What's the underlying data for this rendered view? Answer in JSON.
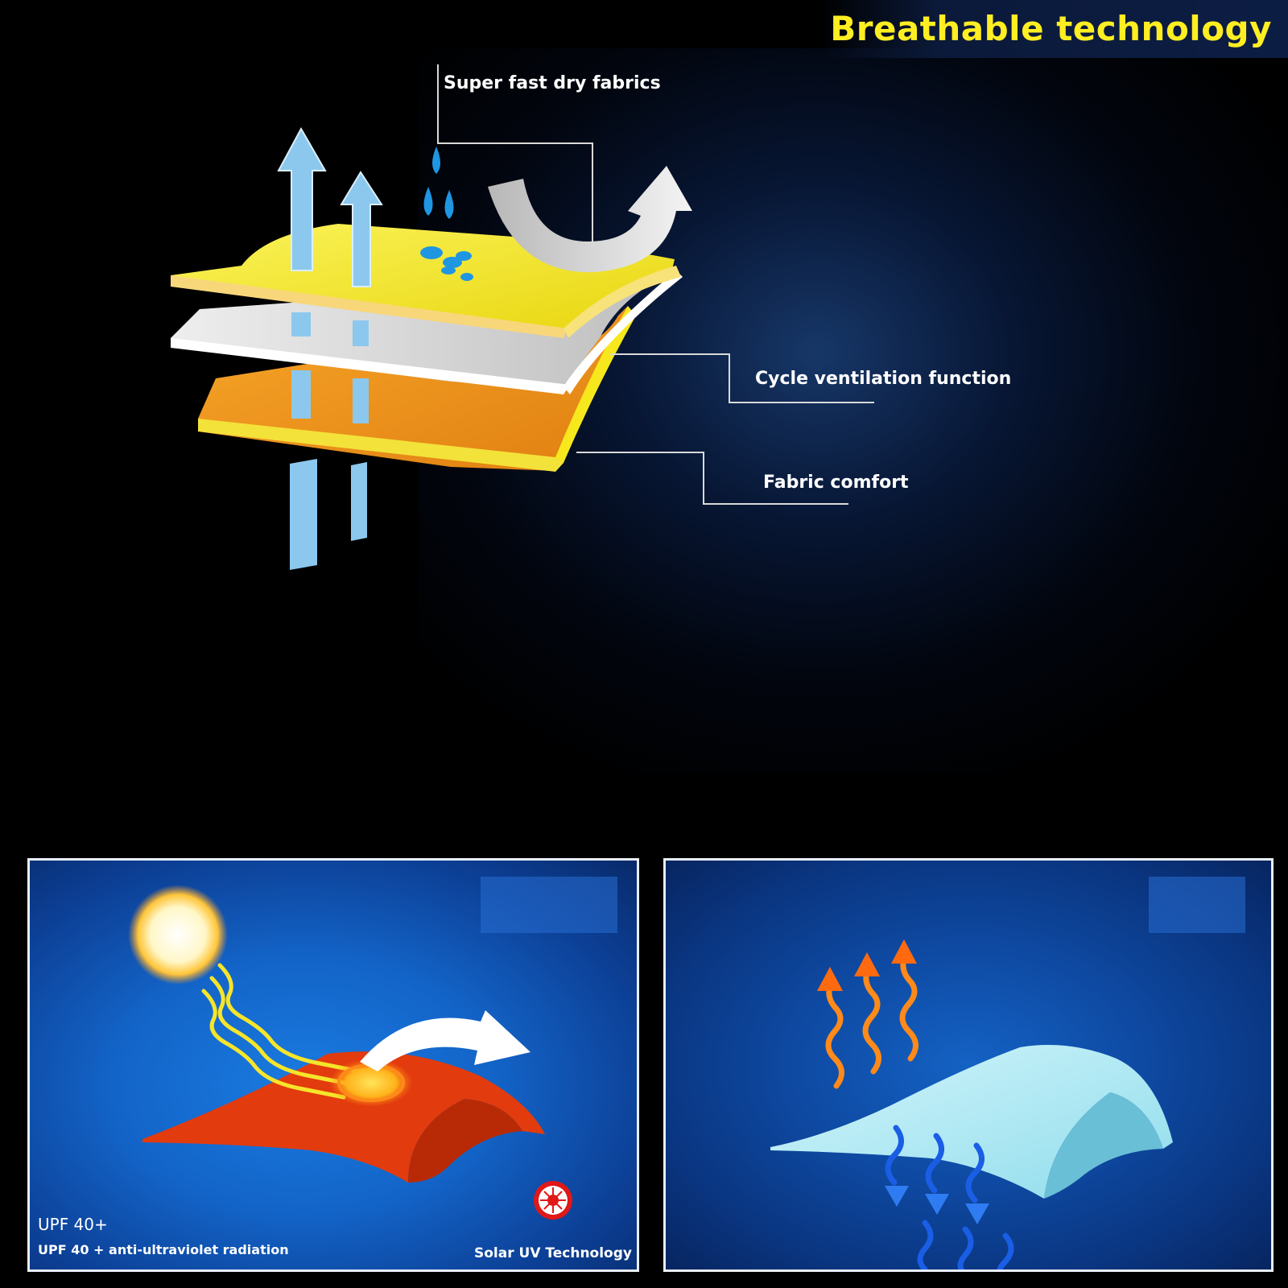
{
  "header": {
    "title": "Breathable technology"
  },
  "callouts": {
    "top": "Super fast dry fabrics",
    "middle": "Cycle ventilation function",
    "bottom": "Fabric comfort"
  },
  "uv_panel": {
    "badge": "UPF 40+",
    "caption": "UPF 40 + anti-ultraviolet radiation",
    "brand": "Solar UV Technology"
  },
  "colors": {
    "title": "#ffee22",
    "top_layer": "#f6e81c",
    "middle_layer": "#d9d9d9",
    "bottom_layer": "#f39a1d",
    "arrow_blue": "#8cc8ee",
    "uv_fabric": "#e23b0e",
    "cool_fabric": "#a6e8f2"
  }
}
